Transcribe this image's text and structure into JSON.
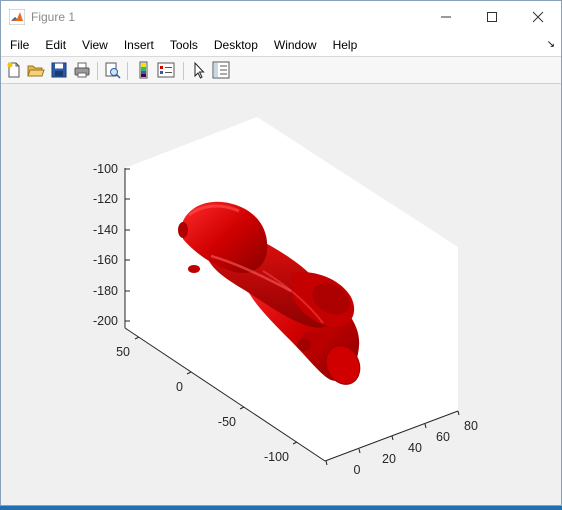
{
  "window": {
    "title": "Figure 1"
  },
  "menu": {
    "items": [
      "File",
      "Edit",
      "View",
      "Insert",
      "Tools",
      "Desktop",
      "Window",
      "Help"
    ]
  },
  "toolbar": {
    "icons": [
      "new-figure-icon",
      "open-file-icon",
      "save-icon",
      "print-icon",
      "print-preview-icon",
      "colorbar-icon",
      "legend-icon",
      "pointer-icon",
      "property-inspector-icon"
    ]
  },
  "chart_data": {
    "type": "3d-surface",
    "surface_color": "#d40000",
    "z_ticks": [
      "-100",
      "-120",
      "-140",
      "-160",
      "-180",
      "-200"
    ],
    "y_ticks": [
      "50",
      "0",
      "-50",
      "-100"
    ],
    "x_ticks": [
      "0",
      "20",
      "40",
      "60",
      "80"
    ]
  }
}
